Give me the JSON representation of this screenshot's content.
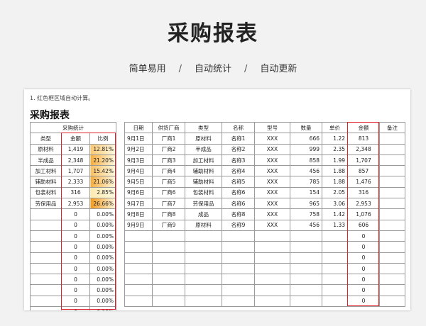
{
  "header": {
    "title": "采购报表",
    "tags": [
      "简单易用",
      "自动统计",
      "自动更新"
    ],
    "separator": "/"
  },
  "sheet": {
    "note": "1. 红色框区域自动计算。",
    "title": "采购报表",
    "summary": {
      "group_header": "采购统计",
      "headers": [
        "类型",
        "金额",
        "比例"
      ],
      "rows": [
        {
          "type": "原材料",
          "amount": "1,419",
          "ratio": "12.81%",
          "pct": 12.81
        },
        {
          "type": "半成品",
          "amount": "2,348",
          "ratio": "21.20%",
          "pct": 21.2
        },
        {
          "type": "加工材料",
          "amount": "1,707",
          "ratio": "15.42%",
          "pct": 15.42
        },
        {
          "type": "辅助材料",
          "amount": "2,333",
          "ratio": "21.06%",
          "pct": 21.06
        },
        {
          "type": "包装材料",
          "amount": "316",
          "ratio": "2.85%",
          "pct": 2.85
        },
        {
          "type": "劳保用品",
          "amount": "2,953",
          "ratio": "26.66%",
          "pct": 26.66
        },
        {
          "type": "",
          "amount": "0",
          "ratio": "0.00%",
          "pct": 0
        },
        {
          "type": "",
          "amount": "0",
          "ratio": "0.00%",
          "pct": 0
        },
        {
          "type": "",
          "amount": "0",
          "ratio": "0.00%",
          "pct": 0
        },
        {
          "type": "",
          "amount": "0",
          "ratio": "0.00%",
          "pct": 0
        },
        {
          "type": "",
          "amount": "0",
          "ratio": "0.00%",
          "pct": 0
        },
        {
          "type": "",
          "amount": "0",
          "ratio": "0.00%",
          "pct": 0
        },
        {
          "type": "",
          "amount": "0",
          "ratio": "0.00%",
          "pct": 0
        },
        {
          "type": "",
          "amount": "0",
          "ratio": "0.00%",
          "pct": 0
        },
        {
          "type": "",
          "amount": "0",
          "ratio": "0.00%",
          "pct": 0
        },
        {
          "type": "",
          "amount": "0",
          "ratio": "0.00%",
          "pct": 0
        }
      ]
    },
    "detail": {
      "headers": [
        "日期",
        "供货厂商",
        "类型",
        "名称",
        "型号",
        "数量",
        "单价",
        "金额",
        "备注"
      ],
      "rows": [
        {
          "date": "9月1日",
          "vendor": "厂商1",
          "type": "原材料",
          "name": "名称1",
          "model": "XXX",
          "qty": "666",
          "price": "1.22",
          "amount": "813",
          "remark": ""
        },
        {
          "date": "9月2日",
          "vendor": "厂商2",
          "type": "半成品",
          "name": "名称2",
          "model": "XXX",
          "qty": "999",
          "price": "2.35",
          "amount": "2,348",
          "remark": ""
        },
        {
          "date": "9月3日",
          "vendor": "厂商3",
          "type": "加工材料",
          "name": "名称3",
          "model": "XXX",
          "qty": "858",
          "price": "1.99",
          "amount": "1,707",
          "remark": ""
        },
        {
          "date": "9月4日",
          "vendor": "厂商4",
          "type": "辅助材料",
          "name": "名称4",
          "model": "XXX",
          "qty": "456",
          "price": "1.88",
          "amount": "857",
          "remark": ""
        },
        {
          "date": "9月5日",
          "vendor": "厂商5",
          "type": "辅助材料",
          "name": "名称5",
          "model": "XXX",
          "qty": "785",
          "price": "1.88",
          "amount": "1,476",
          "remark": ""
        },
        {
          "date": "9月6日",
          "vendor": "厂商6",
          "type": "包装材料",
          "name": "名称6",
          "model": "XXX",
          "qty": "154",
          "price": "2.05",
          "amount": "316",
          "remark": ""
        },
        {
          "date": "9月7日",
          "vendor": "厂商7",
          "type": "劳保用品",
          "name": "名称6",
          "model": "XXX",
          "qty": "965",
          "price": "3.06",
          "amount": "2,953",
          "remark": ""
        },
        {
          "date": "9月8日",
          "vendor": "厂商8",
          "type": "成品",
          "name": "名称8",
          "model": "XXX",
          "qty": "758",
          "price": "1.42",
          "amount": "1,076",
          "remark": ""
        },
        {
          "date": "9月9日",
          "vendor": "厂商9",
          "type": "原材料",
          "name": "名称9",
          "model": "XXX",
          "qty": "456",
          "price": "1.33",
          "amount": "606",
          "remark": ""
        },
        {
          "date": "",
          "vendor": "",
          "type": "",
          "name": "",
          "model": "",
          "qty": "",
          "price": "",
          "amount": "0",
          "remark": ""
        },
        {
          "date": "",
          "vendor": "",
          "type": "",
          "name": "",
          "model": "",
          "qty": "",
          "price": "",
          "amount": "0",
          "remark": ""
        },
        {
          "date": "",
          "vendor": "",
          "type": "",
          "name": "",
          "model": "",
          "qty": "",
          "price": "",
          "amount": "0",
          "remark": ""
        },
        {
          "date": "",
          "vendor": "",
          "type": "",
          "name": "",
          "model": "",
          "qty": "",
          "price": "",
          "amount": "0",
          "remark": ""
        },
        {
          "date": "",
          "vendor": "",
          "type": "",
          "name": "",
          "model": "",
          "qty": "",
          "price": "",
          "amount": "0",
          "remark": ""
        },
        {
          "date": "",
          "vendor": "",
          "type": "",
          "name": "",
          "model": "",
          "qty": "",
          "price": "",
          "amount": "0",
          "remark": ""
        },
        {
          "date": "",
          "vendor": "",
          "type": "",
          "name": "",
          "model": "",
          "qty": "",
          "price": "",
          "amount": "0",
          "remark": ""
        }
      ]
    },
    "colors": {
      "highlight_box": "#e0202a",
      "ratio_fill_low": "#fff2c2",
      "ratio_fill_high": "#f39a1e"
    }
  }
}
